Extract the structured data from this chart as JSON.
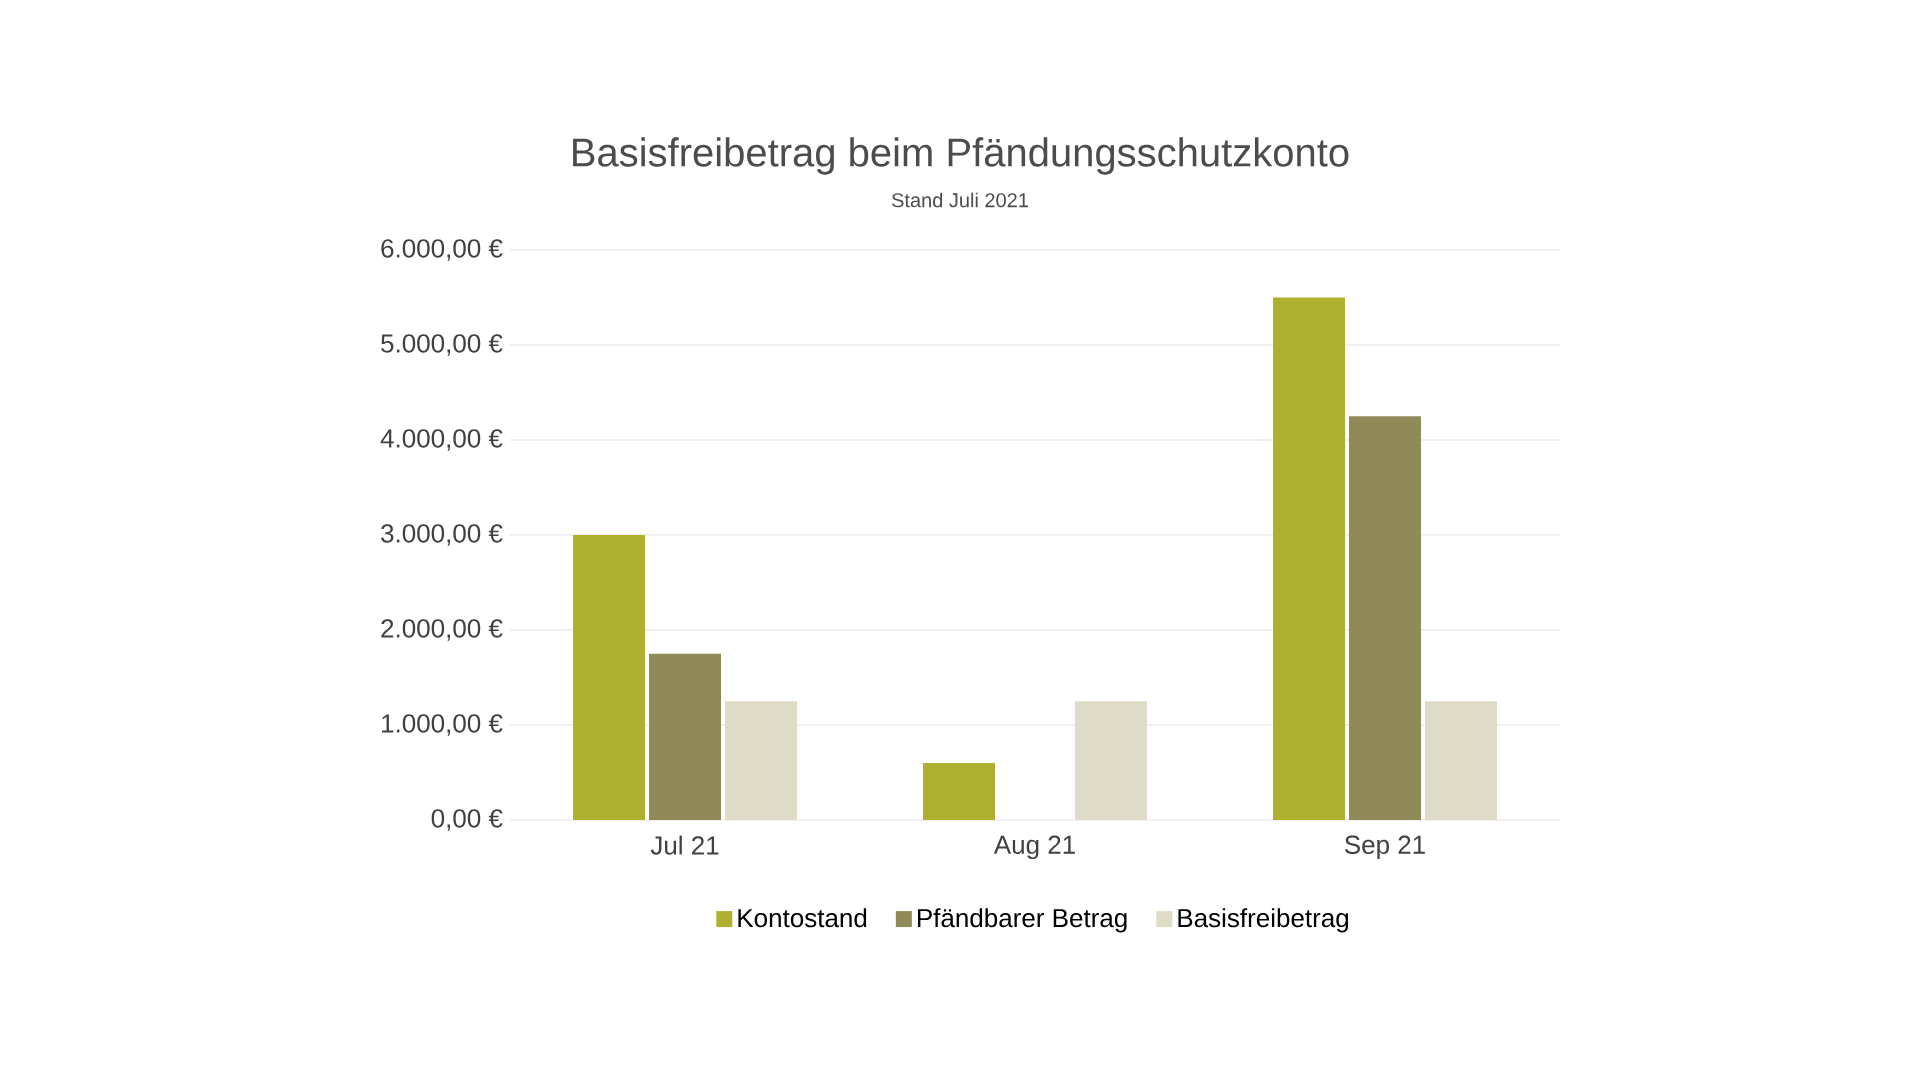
{
  "chart_data": {
    "type": "bar",
    "title": "Basisfreibetrag beim Pfändungsschutzkonto",
    "subtitle": "Stand Juli 2021",
    "categories": [
      "Jul 21",
      "Aug 21",
      "Sep 21"
    ],
    "series": [
      {
        "name": "Kontostand",
        "color": "#b0b030",
        "values": [
          3000,
          600,
          5500
        ]
      },
      {
        "name": "Pfändbarer Betrag",
        "color": "#8f8a58",
        "values": [
          1750,
          0,
          4250
        ]
      },
      {
        "name": "Basisfreibetrag",
        "color": "#dedcc6",
        "values": [
          1250,
          1250,
          1250
        ]
      }
    ],
    "ylim": [
      0,
      6000
    ],
    "yticks": [
      {
        "value": 0,
        "label": "0,00 €"
      },
      {
        "value": 1000,
        "label": "1.000,00 €"
      },
      {
        "value": 2000,
        "label": "2.000,00 €"
      },
      {
        "value": 3000,
        "label": "3.000,00 €"
      },
      {
        "value": 4000,
        "label": "4.000,00 €"
      },
      {
        "value": 5000,
        "label": "5.000,00 €"
      },
      {
        "value": 6000,
        "label": "6.000,00 €"
      }
    ],
    "grid": "y",
    "legend": "bottom"
  }
}
